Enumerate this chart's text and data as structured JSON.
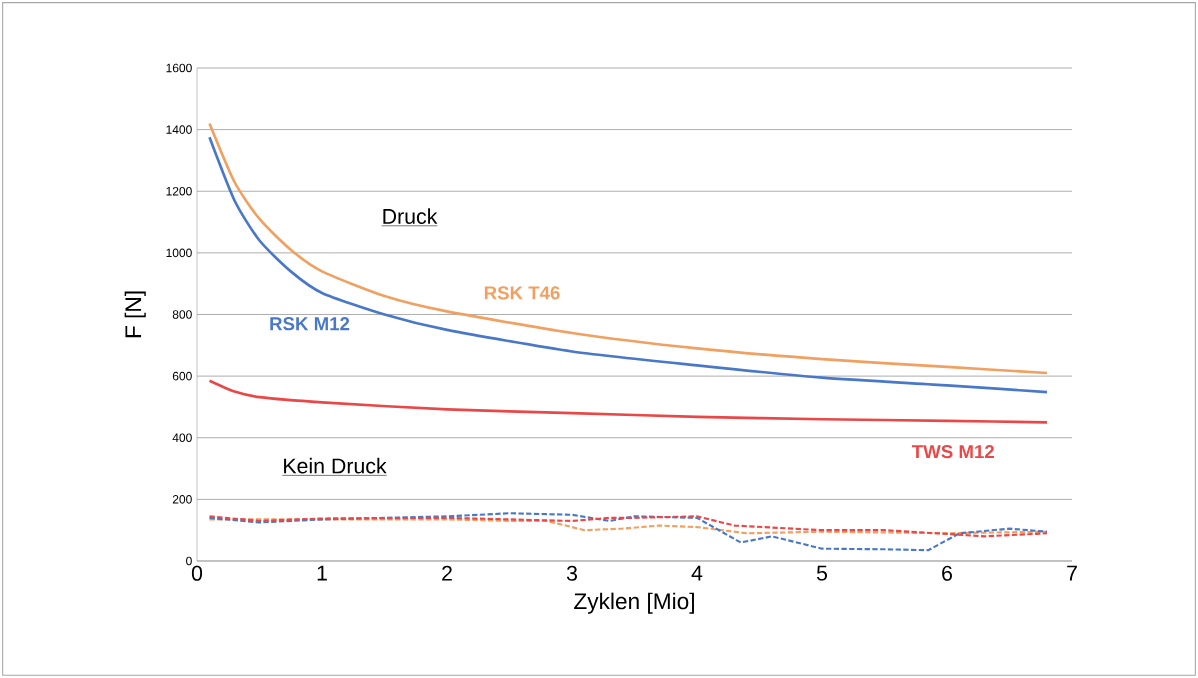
{
  "chart_data": {
    "type": "line",
    "xlabel": "Zyklen [Mio]",
    "ylabel": "F [N]",
    "xlim": [
      0,
      7
    ],
    "xticks": [
      0,
      1,
      2,
      3,
      4,
      5,
      6,
      7
    ],
    "ylim": [
      0,
      1600
    ],
    "yticks": [
      0,
      200,
      400,
      600,
      800,
      1000,
      1200,
      1400,
      1600
    ],
    "grid": "y",
    "marker": "none",
    "annotations": [
      "Druck",
      "Kein Druck"
    ],
    "series": [
      {
        "name": "RSK T46",
        "color": "#f0a060",
        "line_style": "solid",
        "x": [
          0.1,
          0.3,
          0.5,
          0.75,
          1,
          1.5,
          2,
          3,
          4,
          5,
          6,
          6.8
        ],
        "values": [
          1420,
          1230,
          1110,
          1010,
          940,
          860,
          810,
          740,
          690,
          655,
          630,
          610
        ]
      },
      {
        "name": "RSK M12",
        "color": "#4a78c8",
        "line_style": "solid",
        "x": [
          0.1,
          0.3,
          0.5,
          0.75,
          1,
          1.5,
          2,
          3,
          4,
          5,
          6,
          6.8
        ],
        "values": [
          1375,
          1170,
          1040,
          940,
          870,
          800,
          750,
          680,
          635,
          595,
          570,
          548
        ]
      },
      {
        "name": "TWS M12",
        "color": "#e84848",
        "line_style": "solid",
        "x": [
          0.1,
          0.3,
          0.5,
          1,
          2,
          3,
          4,
          5,
          6,
          6.8
        ],
        "values": [
          585,
          550,
          532,
          515,
          492,
          480,
          468,
          460,
          455,
          450
        ]
      },
      {
        "color": "#f0a060",
        "line_style": "dashed",
        "x": [
          0.1,
          1,
          2,
          2.5,
          2.8,
          3.1,
          3.4,
          3.7,
          4,
          4.4,
          5,
          6,
          6.8
        ],
        "values": [
          135,
          135,
          135,
          130,
          130,
          100,
          105,
          115,
          110,
          90,
          95,
          90,
          95
        ]
      },
      {
        "color": "#4a78c8",
        "line_style": "dashed",
        "x": [
          0.1,
          0.5,
          1,
          2,
          2.5,
          3,
          3.3,
          3.5,
          4,
          4.35,
          4.6,
          5,
          5.5,
          5.85,
          6.1,
          6.5,
          6.8
        ],
        "values": [
          140,
          125,
          135,
          145,
          155,
          150,
          130,
          145,
          140,
          60,
          80,
          40,
          38,
          35,
          90,
          105,
          95
        ]
      },
      {
        "color": "#e84848",
        "line_style": "dashed",
        "x": [
          0.1,
          0.5,
          1,
          2,
          3,
          3.3,
          3.5,
          4,
          4.3,
          5,
          5.5,
          6,
          6.3,
          6.8
        ],
        "values": [
          145,
          130,
          138,
          140,
          130,
          140,
          140,
          145,
          115,
          100,
          100,
          88,
          80,
          90
        ]
      }
    ]
  }
}
